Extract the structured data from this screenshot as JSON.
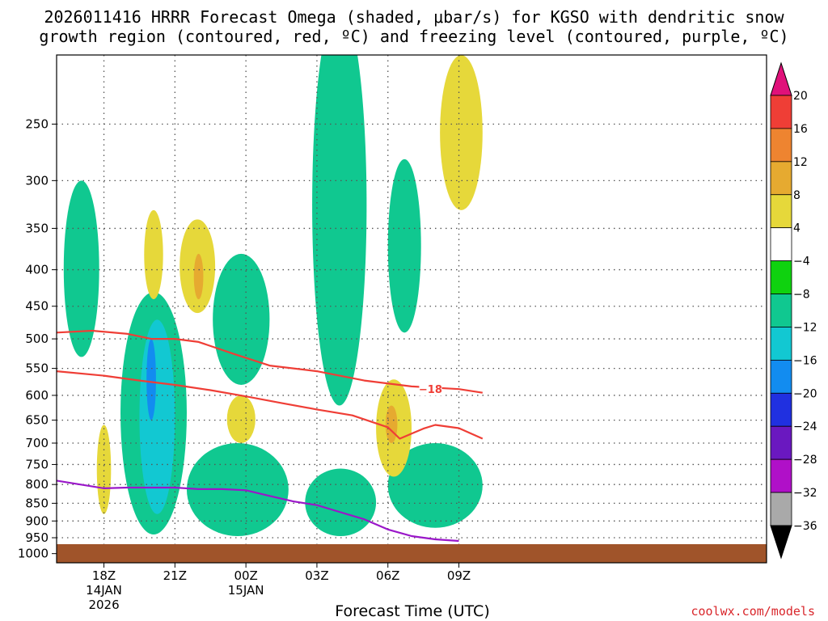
{
  "chart_data": {
    "type": "heatmap",
    "title": "2026011416 HRRR Forecast Omega (shaded, μbar/s) for KGSO with dendritic snow",
    "subtitle": "growth region (contoured, red, ºC) and freezing level (contoured, purple, ºC)",
    "xlabel": "Forecast Time (UTC)",
    "ylabel": "",
    "credit": "coolwx.com/models",
    "y_axis": {
      "scale": "log-pressure",
      "units": "mb",
      "range": [
        1030,
        200
      ],
      "ticks": [
        250,
        300,
        350,
        400,
        450,
        500,
        550,
        600,
        650,
        700,
        750,
        800,
        850,
        900,
        950,
        1000
      ]
    },
    "x_axis": {
      "range_hours": [
        16,
        46
      ],
      "ticks": [
        {
          "hour": 18,
          "label": "18Z",
          "sub1": "14JAN",
          "sub2": "2026"
        },
        {
          "hour": 21,
          "label": "21Z",
          "sub1": "",
          "sub2": ""
        },
        {
          "hour": 24,
          "label": "00Z",
          "sub1": "15JAN",
          "sub2": ""
        },
        {
          "hour": 27,
          "label": "03Z",
          "sub1": "",
          "sub2": ""
        },
        {
          "hour": 30,
          "label": "06Z",
          "sub1": "",
          "sub2": ""
        },
        {
          "hour": 33,
          "label": "09Z",
          "sub1": "",
          "sub2": ""
        }
      ]
    },
    "grid": true,
    "colorbar": {
      "placement": "right",
      "labels": [
        "20",
        "16",
        "12",
        "8",
        "4",
        "−4",
        "−8",
        "−12",
        "−16",
        "−20",
        "−24",
        "−28",
        "−32",
        "−36"
      ],
      "bands": [
        {
          "from": 20,
          "to": 24,
          "color": "#e0117a"
        },
        {
          "from": 16,
          "to": 20,
          "color": "#ef3e36"
        },
        {
          "from": 12,
          "to": 16,
          "color": "#ee8430"
        },
        {
          "from": 8,
          "to": 12,
          "color": "#e6aa30"
        },
        {
          "from": 4,
          "to": 8,
          "color": "#e6d83a"
        },
        {
          "from": -4,
          "to": 4,
          "color": "#ffffff"
        },
        {
          "from": -8,
          "to": -4,
          "color": "#0fd20f"
        },
        {
          "from": -12,
          "to": -8,
          "color": "#10c890"
        },
        {
          "from": -16,
          "to": -12,
          "color": "#12c8d2"
        },
        {
          "from": -20,
          "to": -16,
          "color": "#128cf0"
        },
        {
          "from": -24,
          "to": -20,
          "color": "#2030e0"
        },
        {
          "from": -28,
          "to": -24,
          "color": "#6a18c0"
        },
        {
          "from": -32,
          "to": -28,
          "color": "#b010c8"
        },
        {
          "from": -36,
          "to": -32,
          "color": "#a9a9a9"
        },
        {
          "from": -40,
          "to": -36,
          "color": "#000000"
        }
      ]
    },
    "contours": [
      {
        "name": "",
        "label": "",
        "color": "#ef3e36",
        "hours": [
          16,
          17.5,
          19,
          20,
          21,
          22,
          23.5,
          25,
          27,
          29,
          31,
          33,
          34
        ],
        "pressure": [
          490,
          487,
          492,
          500,
          500,
          505,
          525,
          545,
          555,
          572,
          583,
          588,
          595
        ]
      },
      {
        "name": "",
        "label": "−18",
        "label_hour": 31.8,
        "label_pressure": 588,
        "color": "#ef3e36",
        "hours": [
          16,
          18,
          19.5,
          21,
          22.5,
          24,
          25.5,
          27,
          28.5,
          30,
          30.5,
          31.5,
          32,
          33,
          34
        ],
        "pressure": [
          555,
          563,
          572,
          580,
          590,
          602,
          615,
          628,
          640,
          665,
          690,
          668,
          660,
          667,
          690
        ]
      },
      {
        "name": "",
        "label": "",
        "color": "#9a17c9",
        "hours": [
          16,
          17,
          18,
          19,
          20,
          21,
          22,
          23,
          24,
          25,
          26,
          27,
          28,
          29,
          30,
          31,
          32,
          33
        ],
        "pressure": [
          790,
          800,
          810,
          808,
          808,
          808,
          812,
          812,
          815,
          830,
          845,
          855,
          875,
          895,
          925,
          945,
          955,
          960
        ]
      }
    ],
    "omega_regions_approx": [
      {
        "band": "-8",
        "hours": [
          16.3,
          17.8
        ],
        "pressure": [
          300,
          530
        ]
      },
      {
        "band": "-8",
        "hours": [
          18.7,
          21.5
        ],
        "pressure": [
          430,
          940
        ]
      },
      {
        "band": "-8",
        "hours": [
          21.5,
          25.8
        ],
        "pressure": [
          700,
          945
        ]
      },
      {
        "band": "-8",
        "hours": [
          22.6,
          25
        ],
        "pressure": [
          380,
          580
        ]
      },
      {
        "band": "-8",
        "hours": [
          26.8,
          29.1
        ],
        "pressure": [
          170,
          620
        ]
      },
      {
        "band": "-8",
        "hours": [
          30,
          31.4
        ],
        "pressure": [
          280,
          490
        ]
      },
      {
        "band": "-8",
        "hours": [
          26.5,
          29.5
        ],
        "pressure": [
          760,
          945
        ]
      },
      {
        "band": "-8",
        "hours": [
          30,
          34
        ],
        "pressure": [
          700,
          920
        ]
      },
      {
        "band": "-12",
        "hours": [
          19.5,
          21
        ],
        "pressure": [
          470,
          880
        ]
      },
      {
        "band": "-16",
        "hours": [
          19.8,
          20.2
        ],
        "pressure": [
          500,
          650
        ]
      },
      {
        "band": "4",
        "hours": [
          19.7,
          20.5
        ],
        "pressure": [
          330,
          440
        ]
      },
      {
        "band": "4",
        "hours": [
          21.2,
          22.7
        ],
        "pressure": [
          340,
          460
        ]
      },
      {
        "band": "8",
        "hours": [
          21.8,
          22.2
        ],
        "pressure": [
          380,
          440
        ]
      },
      {
        "band": "4",
        "hours": [
          32.2,
          34
        ],
        "pressure": [
          200,
          330
        ]
      },
      {
        "band": "4",
        "hours": [
          29.5,
          31
        ],
        "pressure": [
          570,
          780
        ]
      },
      {
        "band": "8",
        "hours": [
          29.9,
          30.4
        ],
        "pressure": [
          620,
          700
        ]
      },
      {
        "band": "4",
        "hours": [
          17.7,
          18.3
        ],
        "pressure": [
          660,
          880
        ]
      },
      {
        "band": "4",
        "hours": [
          23.2,
          24.4
        ],
        "pressure": [
          600,
          700
        ]
      }
    ],
    "ground": {
      "from_pressure": 970,
      "to_pressure": 1030,
      "color": "#a0542a"
    }
  }
}
